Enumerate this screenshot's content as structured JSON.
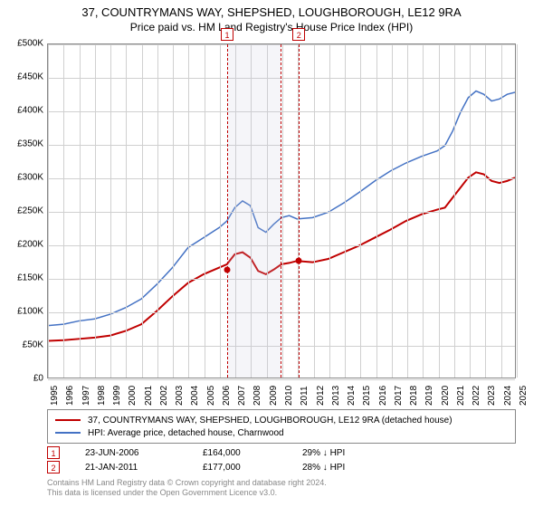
{
  "title": {
    "line1": "37, COUNTRYMANS WAY, SHEPSHED, LOUGHBOROUGH, LE12 9RA",
    "line2": "Price paid vs. HM Land Registry's House Price Index (HPI)",
    "fontsize_line1": 13,
    "fontsize_line2": 12,
    "color": "#000000"
  },
  "chart": {
    "type": "line",
    "background_color": "#ffffff",
    "border_color": "#888888",
    "grid_color": "#d0d0d0",
    "x_axis": {
      "min_year": 1995,
      "max_year": 2025,
      "ticks": [
        1995,
        1996,
        1997,
        1998,
        1999,
        2000,
        2001,
        2002,
        2003,
        2004,
        2005,
        2006,
        2007,
        2008,
        2009,
        2010,
        2011,
        2012,
        2013,
        2014,
        2015,
        2016,
        2017,
        2018,
        2019,
        2020,
        2021,
        2022,
        2023,
        2024,
        2025
      ],
      "label_fontsize": 10,
      "label_rotation_deg": -90
    },
    "y_axis": {
      "min": 0,
      "max": 500000,
      "tick_step": 50000,
      "ticks": [
        0,
        50000,
        100000,
        150000,
        200000,
        250000,
        300000,
        350000,
        400000,
        450000,
        500000
      ],
      "tick_labels": [
        "£0",
        "£50K",
        "£100K",
        "£150K",
        "£200K",
        "£250K",
        "£300K",
        "£350K",
        "£400K",
        "£450K",
        "£500K"
      ],
      "label_fontsize": 10
    },
    "series": [
      {
        "id": "property",
        "label": "37, COUNTRYMANS WAY, SHEPSHED, LOUGHBOROUGH, LE12 9RA (detached house)",
        "color": "#c00000",
        "line_width": 2,
        "data": [
          [
            1995,
            55000
          ],
          [
            1996,
            56000
          ],
          [
            1997,
            58000
          ],
          [
            1998,
            60000
          ],
          [
            1999,
            63000
          ],
          [
            2000,
            70000
          ],
          [
            2001,
            80000
          ],
          [
            2002,
            100000
          ],
          [
            2003,
            122000
          ],
          [
            2004,
            142000
          ],
          [
            2005,
            155000
          ],
          [
            2006,
            165000
          ],
          [
            2006.5,
            170000
          ],
          [
            2007,
            185000
          ],
          [
            2007.5,
            188000
          ],
          [
            2008,
            180000
          ],
          [
            2008.5,
            160000
          ],
          [
            2009,
            155000
          ],
          [
            2009.5,
            162000
          ],
          [
            2010,
            170000
          ],
          [
            2010.5,
            172000
          ],
          [
            2011,
            175000
          ],
          [
            2012,
            173000
          ],
          [
            2013,
            178000
          ],
          [
            2014,
            188000
          ],
          [
            2015,
            198000
          ],
          [
            2016,
            210000
          ],
          [
            2017,
            222000
          ],
          [
            2018,
            235000
          ],
          [
            2019,
            245000
          ],
          [
            2020,
            252000
          ],
          [
            2020.5,
            255000
          ],
          [
            2021,
            270000
          ],
          [
            2021.5,
            285000
          ],
          [
            2022,
            300000
          ],
          [
            2022.5,
            308000
          ],
          [
            2023,
            305000
          ],
          [
            2023.5,
            295000
          ],
          [
            2024,
            292000
          ],
          [
            2024.5,
            295000
          ],
          [
            2025,
            300000
          ]
        ]
      },
      {
        "id": "hpi",
        "label": "HPI: Average price, detached house, Charnwood",
        "color": "#4472c4",
        "line_width": 1.5,
        "data": [
          [
            1995,
            78000
          ],
          [
            1996,
            80000
          ],
          [
            1997,
            85000
          ],
          [
            1998,
            88000
          ],
          [
            1999,
            95000
          ],
          [
            2000,
            105000
          ],
          [
            2001,
            118000
          ],
          [
            2002,
            140000
          ],
          [
            2003,
            165000
          ],
          [
            2004,
            195000
          ],
          [
            2005,
            210000
          ],
          [
            2006,
            225000
          ],
          [
            2006.5,
            235000
          ],
          [
            2007,
            255000
          ],
          [
            2007.5,
            265000
          ],
          [
            2008,
            258000
          ],
          [
            2008.5,
            225000
          ],
          [
            2009,
            218000
          ],
          [
            2009.5,
            230000
          ],
          [
            2010,
            240000
          ],
          [
            2010.5,
            243000
          ],
          [
            2011,
            238000
          ],
          [
            2012,
            240000
          ],
          [
            2013,
            248000
          ],
          [
            2014,
            262000
          ],
          [
            2015,
            278000
          ],
          [
            2016,
            295000
          ],
          [
            2017,
            310000
          ],
          [
            2018,
            322000
          ],
          [
            2019,
            332000
          ],
          [
            2020,
            340000
          ],
          [
            2020.5,
            348000
          ],
          [
            2021,
            370000
          ],
          [
            2021.5,
            398000
          ],
          [
            2022,
            420000
          ],
          [
            2022.5,
            430000
          ],
          [
            2023,
            425000
          ],
          [
            2023.5,
            415000
          ],
          [
            2024,
            418000
          ],
          [
            2024.5,
            425000
          ],
          [
            2025,
            428000
          ]
        ]
      }
    ],
    "event_bands": [
      {
        "id": 1,
        "year": 2006.47,
        "band_width_years": 3.5,
        "label": "1"
      },
      {
        "id": 2,
        "year": 2011.06,
        "band_width_years": 0,
        "label": "2"
      }
    ],
    "sale_markers": [
      {
        "year": 2006.47,
        "price": 164000,
        "color": "#c00000"
      },
      {
        "year": 2011.06,
        "price": 177000,
        "color": "#c00000"
      }
    ]
  },
  "legend": {
    "border_color": "#888888",
    "fontsize": 10,
    "items": [
      {
        "color": "#c00000",
        "label": "37, COUNTRYMANS WAY, SHEPSHED, LOUGHBOROUGH, LE12 9RA (detached house)"
      },
      {
        "color": "#4472c4",
        "label": "HPI: Average price, detached house, Charnwood"
      }
    ]
  },
  "sales": [
    {
      "badge": "1",
      "date": "23-JUN-2006",
      "price": "£164,000",
      "pct": "29% ↓ HPI"
    },
    {
      "badge": "2",
      "date": "21-JAN-2011",
      "price": "£177,000",
      "pct": "28% ↓ HPI"
    }
  ],
  "footer": {
    "line1": "Contains HM Land Registry data © Crown copyright and database right 2024.",
    "line2": "This data is licensed under the Open Government Licence v3.0.",
    "color": "#888888",
    "fontsize": 9
  }
}
